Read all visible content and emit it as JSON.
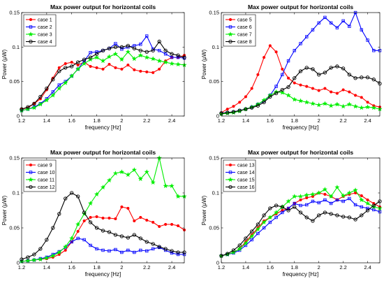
{
  "chart_data": [
    {
      "type": "line",
      "title": "Max power output for horizontal coils",
      "xlabel": "frequency [Hz]",
      "ylabel": "Power (μW)",
      "xlim": [
        1.2,
        2.5
      ],
      "ylim": [
        0,
        0.15
      ],
      "xticks": [
        "1.2",
        "1.4",
        "1.6",
        "1.8",
        "2",
        "2.2",
        "2.4"
      ],
      "yticks": [
        "0",
        "0.05",
        "0.1",
        "0.15"
      ],
      "legend_position": "top-left",
      "x": [
        1.2,
        1.25,
        1.3,
        1.35,
        1.4,
        1.45,
        1.5,
        1.55,
        1.6,
        1.65,
        1.7,
        1.75,
        1.8,
        1.85,
        1.9,
        1.95,
        2.0,
        2.05,
        2.1,
        2.15,
        2.2,
        2.25,
        2.3,
        2.35,
        2.4,
        2.45,
        2.5
      ],
      "series": [
        {
          "name": "case 1",
          "color": "#ff0000",
          "marker": "circle",
          "values": [
            0.01,
            0.012,
            0.018,
            0.025,
            0.038,
            0.055,
            0.07,
            0.076,
            0.078,
            0.074,
            0.078,
            0.072,
            0.07,
            0.068,
            0.075,
            0.07,
            0.068,
            0.074,
            0.067,
            0.065,
            0.064,
            0.063,
            0.068,
            0.08,
            0.085,
            0.085,
            0.088
          ]
        },
        {
          "name": "case 2",
          "color": "#0000ff",
          "marker": "square",
          "values": [
            0.008,
            0.01,
            0.013,
            0.018,
            0.025,
            0.035,
            0.045,
            0.05,
            0.058,
            0.068,
            0.08,
            0.092,
            0.093,
            0.095,
            0.098,
            0.105,
            0.097,
            0.1,
            0.102,
            0.104,
            0.116,
            0.097,
            0.095,
            0.09,
            0.085,
            0.085,
            0.084
          ]
        },
        {
          "name": "case 3",
          "color": "#00ee00",
          "marker": "star",
          "values": [
            0.008,
            0.01,
            0.012,
            0.017,
            0.023,
            0.03,
            0.04,
            0.048,
            0.058,
            0.068,
            0.076,
            0.082,
            0.085,
            0.08,
            0.086,
            0.09,
            0.082,
            0.093,
            0.083,
            0.088,
            0.085,
            0.083,
            0.08,
            0.078,
            0.076,
            0.075,
            0.074
          ]
        },
        {
          "name": "case 4",
          "color": "#000000",
          "marker": "circle-open",
          "values": [
            0.01,
            0.013,
            0.018,
            0.028,
            0.04,
            0.053,
            0.065,
            0.07,
            0.072,
            0.078,
            0.082,
            0.085,
            0.09,
            0.095,
            0.098,
            0.1,
            0.1,
            0.102,
            0.098,
            0.095,
            0.093,
            0.095,
            0.108,
            0.095,
            0.09,
            0.088,
            0.085
          ]
        }
      ]
    },
    {
      "type": "line",
      "title": "Max power output for horizontal coils",
      "xlabel": "frequency [Hz]",
      "ylabel": "Power (μW)",
      "xlim": [
        1.2,
        2.5
      ],
      "ylim": [
        0,
        0.15
      ],
      "xticks": [
        "1.2",
        "1.4",
        "1.6",
        "1.8",
        "2",
        "2.2",
        "2.4"
      ],
      "yticks": [
        "0",
        "0.05",
        "0.1",
        "0.15"
      ],
      "legend_position": "top-left",
      "x": [
        1.2,
        1.25,
        1.3,
        1.35,
        1.4,
        1.45,
        1.5,
        1.55,
        1.6,
        1.65,
        1.7,
        1.75,
        1.8,
        1.85,
        1.9,
        1.95,
        2.0,
        2.05,
        2.1,
        2.15,
        2.2,
        2.25,
        2.3,
        2.35,
        2.4,
        2.45,
        2.5
      ],
      "series": [
        {
          "name": "case 5",
          "color": "#ff0000",
          "marker": "circle",
          "values": [
            0.005,
            0.01,
            0.014,
            0.02,
            0.028,
            0.04,
            0.06,
            0.085,
            0.102,
            0.093,
            0.068,
            0.055,
            0.048,
            0.045,
            0.043,
            0.04,
            0.037,
            0.04,
            0.035,
            0.033,
            0.038,
            0.035,
            0.03,
            0.027,
            0.02,
            0.015,
            0.013
          ]
        },
        {
          "name": "case 6",
          "color": "#0000ff",
          "marker": "square",
          "values": [
            0.004,
            0.005,
            0.006,
            0.008,
            0.01,
            0.013,
            0.017,
            0.022,
            0.03,
            0.043,
            0.06,
            0.08,
            0.095,
            0.105,
            0.115,
            0.125,
            0.135,
            0.143,
            0.135,
            0.128,
            0.138,
            0.13,
            0.15,
            0.125,
            0.11,
            0.095,
            0.095
          ]
        },
        {
          "name": "case 7",
          "color": "#00ee00",
          "marker": "star",
          "values": [
            0.003,
            0.004,
            0.005,
            0.007,
            0.01,
            0.013,
            0.017,
            0.023,
            0.03,
            0.035,
            0.034,
            0.03,
            0.024,
            0.022,
            0.02,
            0.018,
            0.016,
            0.018,
            0.015,
            0.017,
            0.014,
            0.017,
            0.014,
            0.012,
            0.013,
            0.012,
            0.01
          ]
        },
        {
          "name": "case 8",
          "color": "#000000",
          "marker": "circle-open",
          "values": [
            0.004,
            0.005,
            0.006,
            0.008,
            0.01,
            0.012,
            0.015,
            0.02,
            0.028,
            0.033,
            0.038,
            0.042,
            0.055,
            0.065,
            0.07,
            0.068,
            0.06,
            0.063,
            0.07,
            0.072,
            0.069,
            0.06,
            0.055,
            0.056,
            0.056,
            0.053,
            0.047
          ]
        }
      ]
    },
    {
      "type": "line",
      "title": "Max power output for horizontal coils",
      "xlabel": "frequency [Hz]",
      "ylabel": "Power (μW)",
      "xlim": [
        1.2,
        2.5
      ],
      "ylim": [
        0,
        0.15
      ],
      "xticks": [
        "1.2",
        "1.4",
        "1.6",
        "1.8",
        "2",
        "2.2",
        "2.4"
      ],
      "yticks": [
        "0",
        "0.05",
        "0.1",
        "0.15"
      ],
      "legend_position": "top-left",
      "x": [
        1.2,
        1.25,
        1.3,
        1.35,
        1.4,
        1.45,
        1.5,
        1.55,
        1.6,
        1.65,
        1.7,
        1.75,
        1.8,
        1.85,
        1.9,
        1.95,
        2.0,
        2.05,
        2.1,
        2.15,
        2.2,
        2.25,
        2.3,
        2.35,
        2.4,
        2.45,
        2.5
      ],
      "series": [
        {
          "name": "case 9",
          "color": "#ff0000",
          "marker": "circle",
          "values": [
            0.002,
            0.003,
            0.004,
            0.005,
            0.006,
            0.008,
            0.012,
            0.018,
            0.03,
            0.045,
            0.06,
            0.065,
            0.066,
            0.064,
            0.064,
            0.063,
            0.08,
            0.078,
            0.06,
            0.065,
            0.061,
            0.058,
            0.052,
            0.055,
            0.055,
            0.053,
            0.047
          ]
        },
        {
          "name": "case 10",
          "color": "#0000ff",
          "marker": "square",
          "values": [
            0.002,
            0.003,
            0.004,
            0.006,
            0.008,
            0.012,
            0.016,
            0.022,
            0.03,
            0.035,
            0.033,
            0.025,
            0.02,
            0.018,
            0.017,
            0.019,
            0.015,
            0.018,
            0.015,
            0.018,
            0.017,
            0.02,
            0.022,
            0.018,
            0.014,
            0.012,
            0.012
          ]
        },
        {
          "name": "case 11",
          "color": "#00ee00",
          "marker": "star",
          "values": [
            0.002,
            0.003,
            0.004,
            0.005,
            0.007,
            0.01,
            0.015,
            0.023,
            0.035,
            0.055,
            0.07,
            0.085,
            0.098,
            0.108,
            0.118,
            0.128,
            0.13,
            0.126,
            0.133,
            0.12,
            0.13,
            0.115,
            0.15,
            0.11,
            0.11,
            0.095,
            0.095
          ]
        },
        {
          "name": "case 12",
          "color": "#000000",
          "marker": "circle-open",
          "values": [
            0.005,
            0.008,
            0.012,
            0.02,
            0.033,
            0.05,
            0.07,
            0.092,
            0.1,
            0.095,
            0.072,
            0.058,
            0.05,
            0.046,
            0.044,
            0.04,
            0.038,
            0.036,
            0.04,
            0.035,
            0.03,
            0.027,
            0.023,
            0.02,
            0.017,
            0.015,
            0.015
          ]
        }
      ]
    },
    {
      "type": "line",
      "title": "Max power output for horizontal coils",
      "xlabel": "frequency [Hz]",
      "ylabel": "Power (μW)",
      "xlim": [
        1.2,
        2.5
      ],
      "ylim": [
        0,
        0.15
      ],
      "xticks": [
        "1.2",
        "1.4",
        "1.6",
        "1.8",
        "2",
        "2.2",
        "2.4"
      ],
      "yticks": [
        "0",
        "0.05",
        "0.1",
        "0.15"
      ],
      "legend_position": "top-left",
      "x": [
        1.2,
        1.25,
        1.3,
        1.35,
        1.4,
        1.45,
        1.5,
        1.55,
        1.6,
        1.65,
        1.7,
        1.75,
        1.8,
        1.85,
        1.9,
        1.95,
        2.0,
        2.05,
        2.1,
        2.15,
        2.2,
        2.25,
        2.3,
        2.35,
        2.4,
        2.45,
        2.5
      ],
      "series": [
        {
          "name": "case 13",
          "color": "#ff0000",
          "marker": "circle",
          "values": [
            0.01,
            0.012,
            0.015,
            0.02,
            0.03,
            0.04,
            0.05,
            0.06,
            0.065,
            0.07,
            0.075,
            0.078,
            0.085,
            0.09,
            0.093,
            0.095,
            0.1,
            0.098,
            0.095,
            0.09,
            0.095,
            0.098,
            0.1,
            0.096,
            0.09,
            0.085,
            0.08
          ]
        },
        {
          "name": "case 14",
          "color": "#0000ff",
          "marker": "square",
          "values": [
            0.01,
            0.012,
            0.014,
            0.018,
            0.025,
            0.033,
            0.042,
            0.05,
            0.058,
            0.065,
            0.072,
            0.078,
            0.085,
            0.082,
            0.083,
            0.088,
            0.086,
            0.09,
            0.085,
            0.09,
            0.088,
            0.092,
            0.083,
            0.08,
            0.078,
            0.076,
            0.073
          ]
        },
        {
          "name": "case 15",
          "color": "#00ee00",
          "marker": "star",
          "values": [
            0.01,
            0.012,
            0.015,
            0.02,
            0.028,
            0.038,
            0.048,
            0.058,
            0.065,
            0.072,
            0.08,
            0.088,
            0.095,
            0.095,
            0.097,
            0.098,
            0.1,
            0.105,
            0.095,
            0.108,
            0.096,
            0.1,
            0.104,
            0.09,
            0.085,
            0.08,
            0.078
          ]
        },
        {
          "name": "case 16",
          "color": "#000000",
          "marker": "circle-open",
          "values": [
            0.01,
            0.013,
            0.018,
            0.025,
            0.035,
            0.045,
            0.055,
            0.068,
            0.078,
            0.082,
            0.08,
            0.075,
            0.08,
            0.072,
            0.065,
            0.06,
            0.068,
            0.072,
            0.07,
            0.068,
            0.066,
            0.065,
            0.062,
            0.068,
            0.075,
            0.082,
            0.088
          ]
        }
      ]
    }
  ]
}
